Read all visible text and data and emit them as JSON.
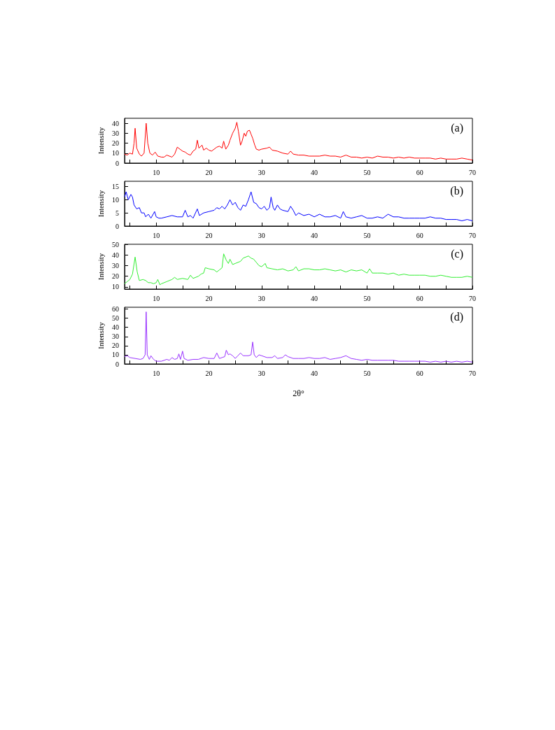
{
  "chart_data": [
    {
      "type": "line",
      "title": "(a)",
      "ylabel": "Intensity",
      "color": "#ff0000",
      "xlim": [
        4,
        70
      ],
      "ylim": [
        0,
        45
      ],
      "yticks": [
        0,
        10,
        20,
        30,
        40
      ],
      "xticks": [
        {
          "value": 5,
          "label": null
        },
        10,
        {
          "value": 15,
          "label": null
        },
        20,
        {
          "value": 25,
          "label": null
        },
        30,
        {
          "value": 35,
          "label": null
        },
        40,
        {
          "value": 45,
          "label": null
        },
        50,
        {
          "value": 55,
          "label": null
        },
        60,
        {
          "value": 65,
          "label": null
        },
        70
      ],
      "x": [
        4,
        4.5,
        5,
        5.5,
        5.8,
        6,
        6.3,
        6.8,
        7.2,
        7.7,
        8.1,
        8.4,
        8.8,
        9.3,
        9.8,
        10.3,
        11,
        11.5,
        12,
        12.5,
        13,
        13.5,
        14,
        14.5,
        15,
        15.5,
        16,
        16.5,
        17,
        17.5,
        17.8,
        18.1,
        18.7,
        19,
        19.5,
        20,
        20.5,
        21,
        21.5,
        22,
        22.5,
        22.8,
        23.2,
        23.7,
        24,
        24.5,
        25,
        25.3,
        25.6,
        26,
        26.3,
        26.7,
        27,
        27.3,
        27.7,
        28,
        28.3,
        28.7,
        29,
        29.5,
        30,
        31,
        31.5,
        32,
        33,
        34,
        35,
        35.5,
        36,
        37,
        38,
        39,
        40,
        41,
        42,
        43,
        44,
        45,
        46,
        47,
        48,
        49,
        50,
        51,
        52,
        53,
        54,
        55,
        56,
        57,
        58,
        59,
        60,
        61,
        62,
        63,
        64,
        65,
        66,
        67,
        68,
        69,
        70
      ],
      "values": [
        9,
        8,
        10,
        9,
        20,
        35,
        15,
        9,
        7,
        10,
        40,
        20,
        10,
        8,
        11,
        7,
        6,
        6,
        8,
        7,
        6,
        9,
        16,
        14,
        12,
        11,
        9,
        8,
        12,
        14,
        23,
        15,
        18,
        13,
        15,
        13,
        12,
        14,
        16,
        17,
        15,
        22,
        14,
        18,
        23,
        30,
        35,
        41,
        32,
        18,
        22,
        30,
        27,
        32,
        33,
        29,
        25,
        18,
        14,
        13,
        14,
        15,
        16,
        13,
        12,
        10,
        9,
        12,
        9,
        8,
        8,
        7,
        7,
        7,
        8,
        7,
        7,
        6,
        8,
        6,
        6,
        5,
        6,
        5,
        7,
        6,
        6,
        5,
        6,
        5,
        6,
        5,
        5,
        5,
        5,
        4,
        5,
        4,
        4,
        4,
        5,
        4,
        3
      ]
    },
    {
      "type": "line",
      "title": "(b)",
      "ylabel": "Intensity",
      "color": "#0000ff",
      "xlim": [
        4,
        70
      ],
      "ylim": [
        0,
        17
      ],
      "yticks": [
        0,
        5,
        10,
        15
      ],
      "xticks": [
        {
          "value": 5,
          "label": null
        },
        10,
        {
          "value": 15,
          "label": null
        },
        20,
        {
          "value": 25,
          "label": null
        },
        30,
        {
          "value": 35,
          "label": null
        },
        40,
        {
          "value": 45,
          "label": null
        },
        50,
        {
          "value": 55,
          "label": null
        },
        60,
        {
          "value": 65,
          "label": null
        },
        70
      ],
      "x": [
        4,
        4.3,
        4.7,
        5.2,
        5.5,
        5.8,
        6.3,
        6.8,
        7.2,
        7.7,
        8,
        8.5,
        9,
        9.7,
        10,
        10.5,
        11,
        12,
        13,
        14,
        15,
        15.5,
        16,
        16.5,
        17,
        17.8,
        18.2,
        19,
        20,
        21,
        21.5,
        22,
        22.5,
        23,
        23.5,
        24,
        24.5,
        25,
        25.5,
        26,
        26.5,
        27,
        27.5,
        28,
        28.5,
        29,
        29.5,
        30,
        30.5,
        31,
        31.5,
        31.8,
        32.2,
        32.5,
        33,
        33.5,
        34,
        35,
        35.5,
        36,
        36.5,
        37,
        38,
        39,
        40,
        41,
        42,
        43,
        44,
        45,
        45.5,
        46,
        47,
        48,
        49,
        50,
        51,
        52,
        53,
        54,
        55,
        56,
        57,
        58,
        59,
        60,
        61,
        62,
        63,
        64,
        65,
        66,
        67,
        68,
        69,
        70
      ],
      "values": [
        11,
        13,
        10,
        12,
        11,
        8,
        6.5,
        7,
        5,
        5,
        3.5,
        4.5,
        3,
        5.5,
        3.5,
        3,
        3,
        3.5,
        4,
        3.5,
        3.5,
        6,
        3.5,
        4,
        3,
        6.5,
        4,
        5,
        5.5,
        6,
        7,
        6.5,
        7.5,
        6.5,
        8,
        10,
        8,
        9,
        7,
        6,
        8,
        7.5,
        10,
        13,
        9,
        8.5,
        7,
        6.5,
        7.5,
        6,
        7,
        11,
        7,
        6,
        8,
        6.5,
        6,
        5.5,
        7.5,
        6,
        4,
        5,
        4,
        4.5,
        3.5,
        4.5,
        3.5,
        3.5,
        4,
        3,
        5.5,
        3.5,
        3,
        3.5,
        4,
        3,
        3,
        3.5,
        3,
        4.5,
        3.5,
        3.5,
        3,
        3,
        3,
        3,
        3,
        3.5,
        3,
        3,
        2.5,
        2.5,
        2.5,
        2,
        2.5,
        2
      ]
    },
    {
      "type": "line",
      "title": "(c)",
      "ylabel": "Intensity",
      "color": "#33ee33",
      "xlim": [
        4,
        70
      ],
      "ylim": [
        8,
        50
      ],
      "yticks": [
        10,
        20,
        30,
        40,
        50
      ],
      "xticks": [
        {
          "value": 5,
          "label": null
        },
        10,
        {
          "value": 15,
          "label": null
        },
        20,
        {
          "value": 25,
          "label": null
        },
        30,
        {
          "value": 35,
          "label": null
        },
        40,
        {
          "value": 45,
          "label": null
        },
        50,
        {
          "value": 55,
          "label": null
        },
        60,
        {
          "value": 65,
          "label": null
        },
        70
      ],
      "x": [
        4,
        4.5,
        5,
        5.5,
        6,
        6.4,
        6.8,
        7.5,
        8,
        8.5,
        9,
        9.5,
        10,
        10.3,
        10.7,
        11,
        12,
        13,
        13.5,
        14,
        15,
        16,
        16.5,
        17,
        18,
        18.5,
        19,
        19.3,
        20,
        21,
        21.5,
        22,
        22.5,
        22.8,
        23.3,
        23.7,
        24,
        24.5,
        25,
        26,
        26.5,
        27,
        27.5,
        28,
        28.5,
        29,
        29.5,
        30,
        30.7,
        31,
        32,
        33,
        34,
        35,
        36,
        36.5,
        37,
        38,
        39,
        40,
        41,
        42,
        43,
        44,
        45,
        46,
        47,
        48,
        49,
        50,
        50.5,
        51,
        52,
        53,
        54,
        55,
        56,
        57,
        58,
        59,
        60,
        61,
        62,
        63,
        64,
        65,
        66,
        67,
        68,
        69,
        70
      ],
      "values": [
        13,
        15,
        17,
        22,
        38,
        24,
        16,
        17,
        16,
        14,
        14,
        13,
        14,
        17,
        12,
        13,
        15,
        17,
        19,
        17,
        18,
        17,
        21,
        18,
        20,
        22,
        23,
        28,
        27,
        26,
        24,
        26,
        28,
        41,
        35,
        32,
        36,
        31,
        32,
        34,
        37,
        38,
        39,
        37,
        36,
        33,
        30,
        29,
        32,
        28,
        27,
        26,
        27,
        25,
        26,
        29,
        25,
        27,
        27,
        26,
        26,
        27,
        26,
        25,
        26,
        24,
        26,
        25,
        26,
        23,
        27,
        23,
        23,
        23,
        22,
        23,
        21,
        22,
        21,
        21,
        21,
        21,
        20,
        20,
        21,
        20,
        19,
        19,
        19,
        20,
        19
      ]
    },
    {
      "type": "line",
      "title": "(d)",
      "ylabel": "Intensity",
      "xlabel": "2θ°",
      "color": "#9933ff",
      "xlim": [
        4,
        70
      ],
      "ylim": [
        0,
        62
      ],
      "yticks": [
        0,
        10,
        20,
        30,
        40,
        50,
        60
      ],
      "xticks": [
        {
          "value": 5,
          "label": null
        },
        10,
        {
          "value": 15,
          "label": null
        },
        20,
        {
          "value": 25,
          "label": null
        },
        30,
        {
          "value": 35,
          "label": null
        },
        40,
        {
          "value": 45,
          "label": null
        },
        50,
        {
          "value": 55,
          "label": null
        },
        60,
        {
          "value": 65,
          "label": null
        },
        70
      ],
      "x": [
        4,
        4.5,
        5,
        6,
        7,
        7.5,
        7.9,
        8.1,
        8.3,
        8.7,
        9,
        9.5,
        10,
        11,
        12,
        12.5,
        13,
        13.5,
        14,
        14.3,
        14.6,
        15,
        15.3,
        16,
        17,
        18,
        19,
        20,
        21,
        21.5,
        22,
        22.5,
        23,
        23.3,
        23.7,
        24,
        24.5,
        25,
        25.5,
        26,
        26.5,
        27,
        27.5,
        28,
        28.3,
        28.6,
        29,
        29.5,
        30,
        31,
        32,
        32.5,
        33,
        34,
        34.5,
        35,
        36,
        37,
        38,
        39,
        40,
        41,
        42,
        43,
        44,
        45,
        46,
        47,
        48,
        49,
        50,
        51,
        52,
        53,
        54,
        55,
        56,
        57,
        58,
        59,
        60,
        61,
        62,
        63,
        64,
        65,
        66,
        67,
        68,
        69,
        70
      ],
      "values": [
        8,
        9,
        7,
        6,
        5,
        6,
        10,
        57,
        10,
        5,
        9,
        5,
        3,
        3,
        5,
        4,
        7,
        5,
        6,
        11,
        5,
        14,
        6,
        4,
        5,
        5,
        7,
        6,
        6,
        12,
        6,
        7,
        8,
        15,
        10,
        11,
        9,
        6,
        9,
        12,
        9,
        9,
        9,
        10,
        24,
        10,
        7,
        10,
        9,
        7,
        7,
        9,
        6,
        7,
        10,
        8,
        6,
        6,
        6,
        7,
        6,
        6,
        7,
        5,
        6,
        7,
        9,
        6,
        5,
        4,
        5,
        4,
        4,
        4,
        4,
        4,
        3,
        3,
        3,
        3,
        3,
        3,
        2,
        3,
        2,
        3,
        2,
        3,
        2,
        3,
        2
      ]
    }
  ]
}
